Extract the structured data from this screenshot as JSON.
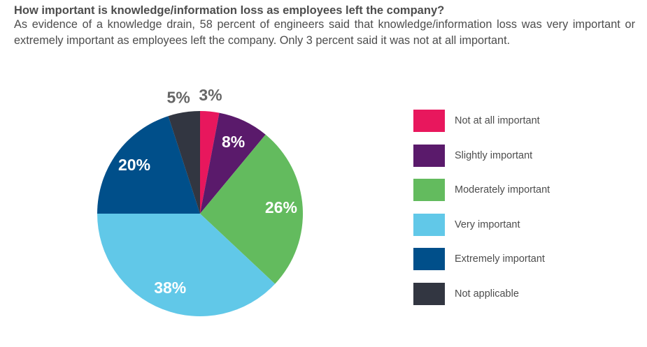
{
  "header": {
    "title": "How important is knowledge/information loss as employees left the company?",
    "subtitle": "As evidence of a knowledge drain, 58 percent of engineers said that knowledge/information loss was very important or extremely important as employees left the company. Only 3 percent said it was not at all important."
  },
  "chart_data": {
    "type": "pie",
    "title": "How important is knowledge/information loss as employees left the company?",
    "categories": [
      "Not at all important",
      "Slightly important",
      "Moderately important",
      "Very important",
      "Extremely important",
      "Not applicable"
    ],
    "values": [
      3,
      8,
      26,
      38,
      20,
      5
    ],
    "data_labels": [
      "3%",
      "8%",
      "26%",
      "38%",
      "20%",
      "5%"
    ],
    "colors": [
      "#e8175d",
      "#5a1a6b",
      "#63bb5e",
      "#61c8e8",
      "#004f8a",
      "#323641"
    ],
    "start": "12 o'clock",
    "direction": "clockwise",
    "legend_position": "right"
  }
}
